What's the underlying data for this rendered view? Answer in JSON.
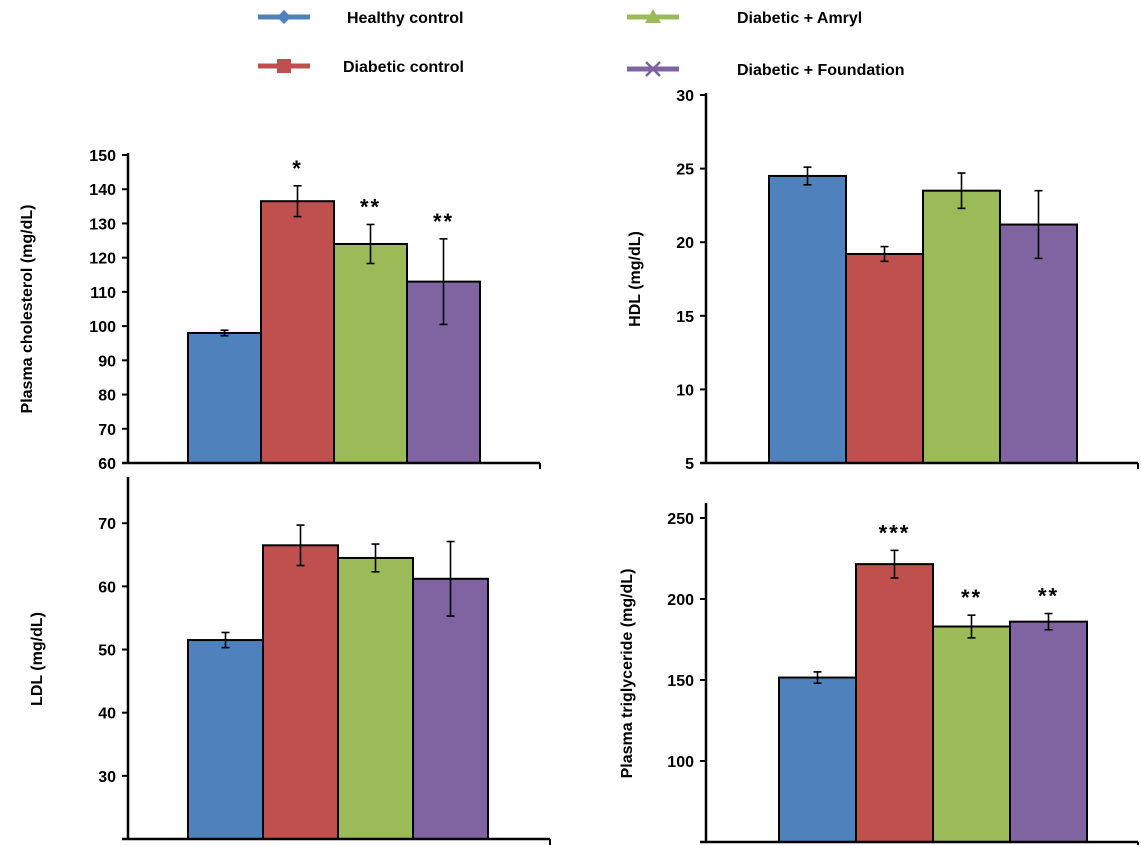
{
  "legend": [
    {
      "label": "Healthy control",
      "color": "#4F81BD",
      "marker": "diamond"
    },
    {
      "label": "Diabetic control",
      "color": "#C0504D",
      "marker": "square"
    },
    {
      "label": "Diabetic + Amryl",
      "color": "#9BBB59",
      "marker": "triangle"
    },
    {
      "label": "Diabetic + Foundation",
      "color": "#8064A2",
      "marker": "cross"
    }
  ],
  "chart_data": [
    {
      "type": "bar",
      "categories": [
        "Healthy control",
        "Diabetic control",
        "Diabetic + Amryl",
        "Diabetic + Foundation"
      ],
      "values": [
        98,
        136.5,
        124,
        113
      ],
      "errors": [
        0.8,
        4.5,
        5.7,
        12.5
      ],
      "significance": [
        "",
        "*",
        "**",
        "**"
      ],
      "ylabel": "Plasma cholesterol (mg/dL)",
      "ylim": [
        60,
        150
      ],
      "yticks": [
        "60",
        "70",
        "80",
        "90",
        "100",
        "110",
        "120",
        "130",
        "140",
        "150"
      ]
    },
    {
      "type": "bar",
      "categories": [
        "Healthy control",
        "Diabetic control",
        "Diabetic + Amryl",
        "Diabetic + Foundation"
      ],
      "values": [
        24.5,
        19.2,
        23.5,
        21.2
      ],
      "errors": [
        0.6,
        0.5,
        1.2,
        2.3
      ],
      "significance": [
        "",
        "",
        "",
        ""
      ],
      "ylabel": "HDL (mg/dL)",
      "ylim": [
        5,
        30
      ],
      "yticks": [
        "5",
        "10",
        "15",
        "20",
        "25",
        "30"
      ]
    },
    {
      "type": "bar",
      "categories": [
        "Healthy control",
        "Diabetic control",
        "Diabetic + Amryl",
        "Diabetic + Foundation"
      ],
      "values": [
        51.5,
        66.5,
        64.5,
        61.2
      ],
      "errors": [
        1.2,
        3.2,
        2.2,
        5.9
      ],
      "significance": [
        "",
        "",
        "",
        ""
      ],
      "ylabel": "LDL (mg/dL)",
      "ylim": [
        20,
        77
      ],
      "yticks": [
        "30",
        "40",
        "50",
        "60",
        "70"
      ]
    },
    {
      "type": "bar",
      "categories": [
        "Healthy control",
        "Diabetic control",
        "Diabetic + Amryl",
        "Diabetic + Foundation"
      ],
      "values": [
        151.5,
        221.5,
        183,
        186
      ],
      "errors": [
        3.5,
        8.5,
        7,
        5
      ],
      "significance": [
        "",
        "***",
        "**",
        "**"
      ],
      "ylabel": "Plasma triglyceride (mg/dL)",
      "ylim": [
        50,
        258
      ],
      "yticks": [
        "100",
        "150",
        "200",
        "250"
      ]
    }
  ]
}
